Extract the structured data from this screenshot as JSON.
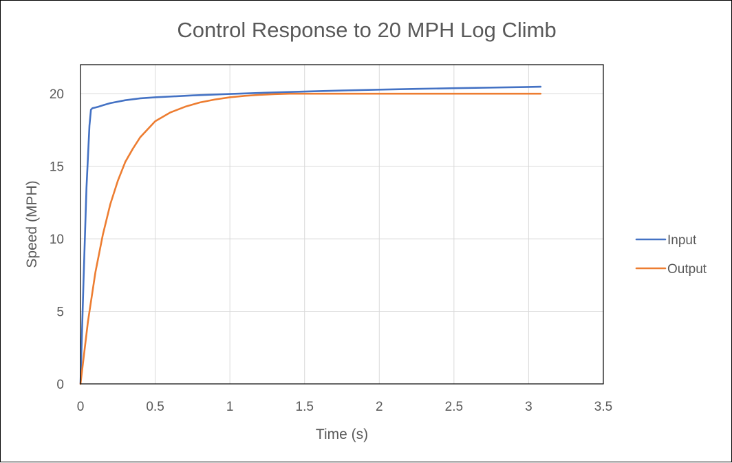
{
  "colors": {
    "input": "#4472C4",
    "output": "#ED7D31",
    "text": "#595959",
    "grid": "#D9D9D9"
  },
  "chart_data": {
    "type": "line",
    "title": "Control Response to 20 MPH Log Climb",
    "xlabel": "Time (s)",
    "ylabel": "Speed (MPH)",
    "xlim": [
      0,
      3.5
    ],
    "ylim": [
      0,
      22
    ],
    "xticks": [
      0,
      0.5,
      1,
      1.5,
      2,
      2.5,
      3,
      3.5
    ],
    "xtick_labels": [
      "0",
      "0.5",
      "1",
      "1.5",
      "2",
      "2.5",
      "3",
      "3.5"
    ],
    "yticks": [
      0,
      5,
      10,
      15,
      20
    ],
    "ytick_labels": [
      "0",
      "5",
      "10",
      "15",
      "20"
    ],
    "grid": true,
    "legend_position": "right",
    "series": [
      {
        "name": "Input",
        "color": "#4472C4",
        "x": [
          0,
          0.02,
          0.04,
          0.06,
          0.07,
          0.08,
          0.1,
          0.12,
          0.15,
          0.2,
          0.3,
          0.4,
          0.5,
          0.75,
          1.0,
          1.25,
          1.5,
          1.75,
          2.0,
          2.25,
          2.5,
          2.75,
          3.0,
          3.08
        ],
        "y": [
          0,
          7,
          13.5,
          17.8,
          18.9,
          19.0,
          19.05,
          19.1,
          19.2,
          19.35,
          19.55,
          19.68,
          19.75,
          19.88,
          19.98,
          20.07,
          20.15,
          20.22,
          20.28,
          20.33,
          20.38,
          20.42,
          20.46,
          20.48
        ]
      },
      {
        "name": "Output",
        "color": "#ED7D31",
        "x": [
          0,
          0.05,
          0.1,
          0.15,
          0.2,
          0.25,
          0.3,
          0.35,
          0.4,
          0.5,
          0.6,
          0.7,
          0.8,
          0.9,
          1.0,
          1.1,
          1.2,
          1.3,
          1.4,
          1.6,
          1.8,
          2.0,
          2.5,
          3.0,
          3.08
        ],
        "y": [
          0,
          4.3,
          7.7,
          10.3,
          12.4,
          14.0,
          15.3,
          16.2,
          17.0,
          18.1,
          18.7,
          19.1,
          19.4,
          19.6,
          19.75,
          19.85,
          19.92,
          19.97,
          20.0,
          20.0,
          20.0,
          20.0,
          20.0,
          20.0,
          20.0
        ]
      }
    ]
  }
}
